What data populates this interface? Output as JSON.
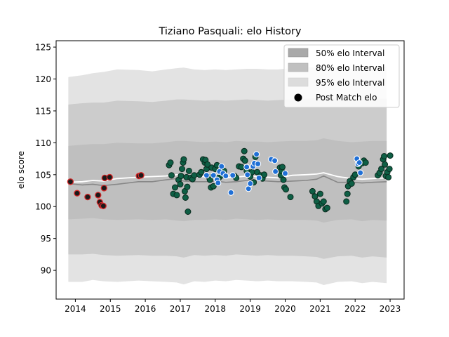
{
  "chart_data": {
    "type": "scatter",
    "title": "Tiziano Pasquali: elo History",
    "xlabel": "",
    "ylabel": "elo score",
    "xlim": [
      2013.45,
      2023.4
    ],
    "ylim": [
      85.5,
      126
    ],
    "x_ticks": [
      2014,
      2015,
      2016,
      2017,
      2018,
      2019,
      2020,
      2021,
      2022,
      2023
    ],
    "x_tick_labels": [
      "2014",
      "2015",
      "2016",
      "2017",
      "2018",
      "2019",
      "2020",
      "2021",
      "2022",
      "2023"
    ],
    "y_ticks": [
      90,
      95,
      100,
      105,
      110,
      115,
      120,
      125
    ],
    "y_tick_labels": [
      "90",
      "95",
      "100",
      "105",
      "110",
      "115",
      "120",
      "125"
    ],
    "legend_position": "top-right",
    "legend": [
      {
        "label": "50% elo Interval",
        "kind": "band",
        "color": "#a9a9a9"
      },
      {
        "label": "80% elo Interval",
        "kind": "band",
        "color": "#c0c0c0"
      },
      {
        "label": "95% elo Interval",
        "kind": "band",
        "color": "#dcdcdc"
      },
      {
        "label": "Post Match elo",
        "kind": "marker",
        "color": "#000000"
      }
    ],
    "colors": {
      "band95": "#e3e3e3",
      "band80": "#cccccc",
      "band50": "#bfbfbf",
      "median_line": "#888888",
      "mean_line": "#ffffff",
      "loss_edge": "#d62728",
      "loss_fill": "#1a1a1a",
      "win_fill": "#0e5f45",
      "win_edge": "#0a2a1e",
      "recent_fill": "#1f6fd6",
      "recent_edge": "#ffffff"
    },
    "band_x": [
      2013.8,
      2014.2,
      2014.5,
      2014.8,
      2015.2,
      2015.8,
      2016.2,
      2016.6,
      2016.9,
      2017.1,
      2017.4,
      2017.7,
      2018.0,
      2018.3,
      2018.6,
      2018.9,
      2019.2,
      2019.5,
      2019.8,
      2020.2,
      2020.6,
      2020.9,
      2021.1,
      2021.5,
      2021.9,
      2022.2,
      2022.5,
      2022.9
    ],
    "band95_upper": [
      120.3,
      120.6,
      120.9,
      121.1,
      121.5,
      121.4,
      121.2,
      121.5,
      121.7,
      121.8,
      121.5,
      121.4,
      121.5,
      121.4,
      121.5,
      121.6,
      121.6,
      121.5,
      121.5,
      121.7,
      121.8,
      121.9,
      122.3,
      121.8,
      121.5,
      121.7,
      121.8,
      121.9
    ],
    "band95_lower": [
      88.2,
      88.2,
      88.5,
      88.3,
      88.2,
      88.4,
      88.3,
      88.2,
      88.1,
      87.8,
      88.3,
      88.2,
      88.4,
      88.3,
      88.5,
      88.4,
      88.3,
      88.4,
      88.3,
      88.3,
      88.2,
      88.1,
      87.7,
      88.2,
      88.3,
      88.0,
      88.2,
      88.0
    ],
    "band80_upper": [
      116.0,
      116.2,
      116.3,
      116.3,
      116.6,
      116.5,
      116.4,
      116.6,
      116.8,
      116.8,
      116.7,
      116.6,
      116.7,
      116.6,
      116.7,
      116.8,
      116.7,
      116.6,
      116.7,
      116.8,
      116.9,
      117.0,
      117.3,
      116.9,
      116.7,
      116.8,
      116.9,
      116.9
    ],
    "band80_lower": [
      92.5,
      92.5,
      92.6,
      92.4,
      92.3,
      92.4,
      92.3,
      92.3,
      92.2,
      92.0,
      92.4,
      92.3,
      92.4,
      92.3,
      92.5,
      92.4,
      92.3,
      92.4,
      92.3,
      92.3,
      92.2,
      92.1,
      91.8,
      92.2,
      92.3,
      92.0,
      92.2,
      92.0
    ],
    "band50_upper": [
      109.5,
      109.7,
      109.8,
      109.8,
      110.0,
      109.9,
      109.9,
      110.1,
      110.3,
      110.3,
      110.2,
      110.1,
      110.2,
      110.1,
      110.3,
      110.2,
      110.2,
      110.1,
      110.2,
      110.3,
      110.3,
      110.4,
      110.7,
      110.3,
      110.1,
      110.2,
      110.3,
      110.3
    ],
    "band50_lower": [
      98.0,
      98.1,
      98.2,
      98.0,
      97.9,
      98.0,
      97.9,
      98.0,
      97.8,
      97.7,
      97.9,
      97.9,
      98.0,
      97.9,
      98.1,
      98.0,
      97.9,
      98.0,
      97.9,
      97.9,
      97.9,
      97.8,
      97.5,
      97.9,
      98.0,
      97.7,
      97.9,
      97.8
    ],
    "median_line": {
      "x": [
        2013.8,
        2014.2,
        2014.5,
        2014.8,
        2015.2,
        2015.8,
        2016.2,
        2016.6,
        2016.9,
        2017.1,
        2017.4,
        2017.7,
        2018.0,
        2018.3,
        2018.6,
        2018.9,
        2019.2,
        2019.5,
        2019.8,
        2020.2,
        2020.6,
        2020.9,
        2021.1,
        2021.5,
        2021.9,
        2022.2,
        2022.5,
        2022.9
      ],
      "y": [
        103.6,
        103.4,
        103.5,
        103.3,
        103.5,
        103.9,
        103.9,
        104.2,
        104.4,
        104.0,
        103.9,
        103.9,
        104.0,
        103.8,
        103.9,
        104.1,
        104.1,
        104.0,
        103.9,
        104.0,
        104.1,
        104.3,
        104.8,
        103.8,
        103.8,
        103.7,
        103.8,
        103.9
      ]
    },
    "mean_line": {
      "x": [
        2013.8,
        2014.2,
        2014.5,
        2014.8,
        2015.2,
        2015.8,
        2016.2,
        2016.6,
        2016.9,
        2017.1,
        2017.4,
        2017.7,
        2018.0,
        2018.3,
        2018.6,
        2018.9,
        2019.2,
        2019.5,
        2019.8,
        2020.2,
        2020.6,
        2020.9,
        2021.1,
        2021.5,
        2021.9,
        2022.2,
        2022.5,
        2022.9
      ],
      "y": [
        103.8,
        103.9,
        104.1,
        104.0,
        104.4,
        104.6,
        104.7,
        104.8,
        105.0,
        104.7,
        104.6,
        104.7,
        104.8,
        104.5,
        104.6,
        104.8,
        104.7,
        104.6,
        104.5,
        104.9,
        105.0,
        105.1,
        105.3,
        104.7,
        104.4,
        104.3,
        104.4,
        104.5
      ]
    },
    "loss_points": [
      [
        2013.86,
        103.9
      ],
      [
        2014.05,
        102.1
      ],
      [
        2014.35,
        101.5
      ],
      [
        2014.65,
        101.8
      ],
      [
        2014.7,
        100.7
      ],
      [
        2014.75,
        100.2
      ],
      [
        2014.8,
        100.1
      ],
      [
        2014.82,
        102.9
      ],
      [
        2014.84,
        104.5
      ],
      [
        2014.98,
        104.6
      ],
      [
        2015.82,
        104.8
      ],
      [
        2015.88,
        104.9
      ]
    ],
    "win_points": [
      [
        2016.68,
        106.5
      ],
      [
        2016.72,
        106.9
      ],
      [
        2016.75,
        104.9
      ],
      [
        2016.8,
        102.0
      ],
      [
        2016.85,
        103.0
      ],
      [
        2016.9,
        101.8
      ],
      [
        2016.95,
        104.2
      ],
      [
        2017.0,
        103.5
      ],
      [
        2017.02,
        104.8
      ],
      [
        2017.05,
        105.9
      ],
      [
        2017.08,
        106.9
      ],
      [
        2017.1,
        107.4
      ],
      [
        2017.13,
        102.4
      ],
      [
        2017.15,
        101.4
      ],
      [
        2017.18,
        104.6
      ],
      [
        2017.2,
        103.1
      ],
      [
        2017.22,
        99.2
      ],
      [
        2017.25,
        105.6
      ],
      [
        2017.3,
        104.5
      ],
      [
        2017.35,
        104.3
      ],
      [
        2017.4,
        104.9
      ],
      [
        2017.55,
        105.0
      ],
      [
        2017.6,
        105.4
      ],
      [
        2017.65,
        107.4
      ],
      [
        2017.7,
        106.9
      ],
      [
        2017.72,
        107.3
      ],
      [
        2017.75,
        105.9
      ],
      [
        2017.78,
        106.6
      ],
      [
        2017.82,
        104.6
      ],
      [
        2017.85,
        104.2
      ],
      [
        2017.88,
        103.0
      ],
      [
        2017.9,
        106.1
      ],
      [
        2017.95,
        103.2
      ],
      [
        2018.0,
        105.9
      ],
      [
        2018.05,
        106.5
      ],
      [
        2018.1,
        104.5
      ],
      [
        2018.2,
        104.9
      ],
      [
        2018.25,
        105.6
      ],
      [
        2018.55,
        104.8
      ],
      [
        2018.6,
        104.5
      ],
      [
        2018.68,
        106.3
      ],
      [
        2018.75,
        106.2
      ],
      [
        2018.8,
        107.5
      ],
      [
        2018.83,
        108.7
      ],
      [
        2018.85,
        107.2
      ],
      [
        2018.9,
        105.6
      ],
      [
        2019.0,
        104.7
      ],
      [
        2019.05,
        105.4
      ],
      [
        2019.1,
        103.8
      ],
      [
        2019.15,
        107.8
      ],
      [
        2019.2,
        105.4
      ],
      [
        2019.3,
        104.9
      ],
      [
        2019.35,
        104.4
      ],
      [
        2019.4,
        105.0
      ],
      [
        2019.85,
        106.1
      ],
      [
        2019.88,
        104.9
      ],
      [
        2019.9,
        105.6
      ],
      [
        2019.92,
        106.2
      ],
      [
        2019.95,
        104.2
      ],
      [
        2019.98,
        103.0
      ],
      [
        2020.02,
        102.7
      ],
      [
        2020.15,
        101.5
      ],
      [
        2020.78,
        102.4
      ],
      [
        2020.85,
        101.6
      ],
      [
        2020.9,
        100.8
      ],
      [
        2020.95,
        100.1
      ],
      [
        2021.0,
        102.0
      ],
      [
        2021.05,
        100.5
      ],
      [
        2021.1,
        100.8
      ],
      [
        2021.15,
        99.6
      ],
      [
        2021.2,
        99.8
      ],
      [
        2021.75,
        100.8
      ],
      [
        2021.78,
        102.0
      ],
      [
        2021.8,
        103.2
      ],
      [
        2021.85,
        104.0
      ],
      [
        2021.9,
        103.6
      ],
      [
        2021.95,
        104.6
      ],
      [
        2022.0,
        105.0
      ],
      [
        2022.1,
        106.3
      ],
      [
        2022.2,
        106.8
      ],
      [
        2022.25,
        107.2
      ],
      [
        2022.3,
        106.9
      ],
      [
        2022.65,
        104.9
      ],
      [
        2022.7,
        105.3
      ],
      [
        2022.75,
        105.9
      ],
      [
        2022.8,
        107.4
      ],
      [
        2022.83,
        107.9
      ],
      [
        2022.85,
        106.6
      ],
      [
        2022.88,
        104.8
      ],
      [
        2022.92,
        105.4
      ],
      [
        2022.95,
        104.6
      ],
      [
        2022.98,
        105.9
      ],
      [
        2023.0,
        108.0
      ]
    ],
    "recent_points": [
      [
        2017.75,
        104.9
      ],
      [
        2017.95,
        104.9
      ],
      [
        2018.05,
        104.2
      ],
      [
        2018.08,
        103.7
      ],
      [
        2018.12,
        105.5
      ],
      [
        2018.18,
        106.3
      ],
      [
        2018.22,
        105.2
      ],
      [
        2018.3,
        104.8
      ],
      [
        2018.45,
        102.2
      ],
      [
        2018.5,
        104.9
      ],
      [
        2018.9,
        106.2
      ],
      [
        2018.92,
        105.0
      ],
      [
        2018.95,
        102.8
      ],
      [
        2019.0,
        103.6
      ],
      [
        2019.08,
        106.3
      ],
      [
        2019.12,
        106.8
      ],
      [
        2019.18,
        108.2
      ],
      [
        2019.22,
        106.7
      ],
      [
        2019.25,
        104.5
      ],
      [
        2019.6,
        107.4
      ],
      [
        2019.7,
        107.2
      ],
      [
        2019.72,
        105.5
      ],
      [
        2020.0,
        105.2
      ],
      [
        2022.05,
        107.5
      ],
      [
        2022.08,
        106.7
      ],
      [
        2022.12,
        106.9
      ],
      [
        2022.15,
        105.3
      ]
    ]
  }
}
